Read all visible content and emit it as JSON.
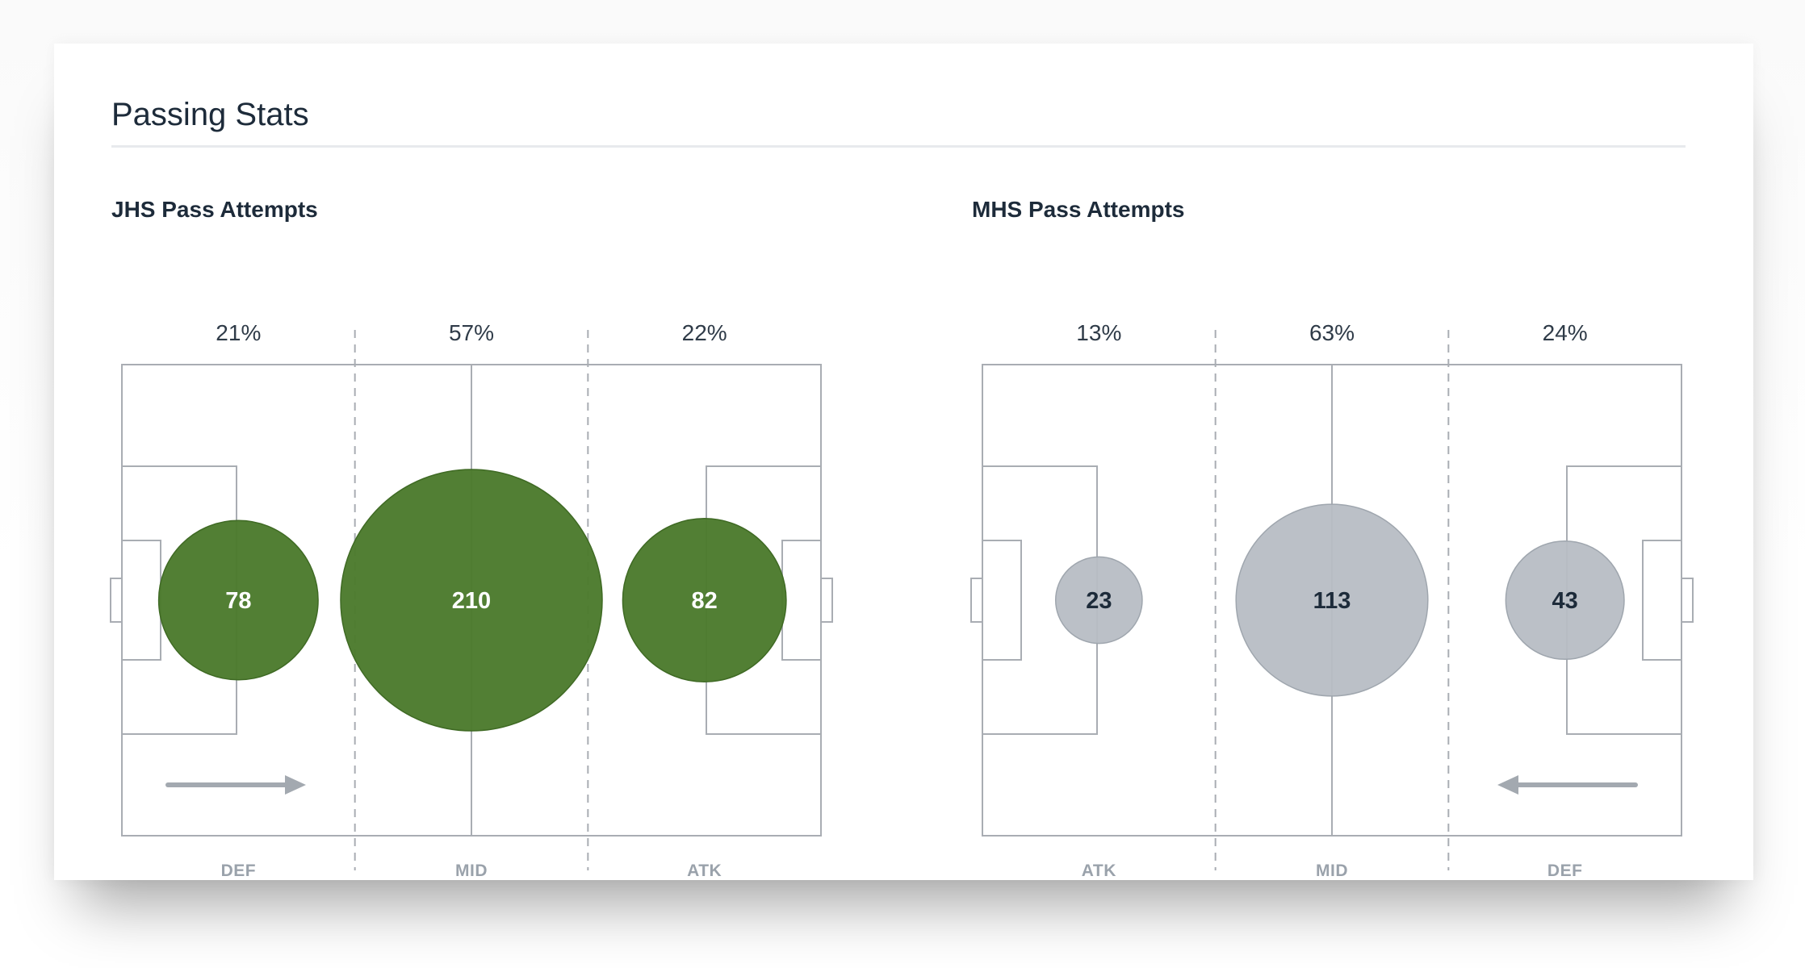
{
  "section_title": "Passing Stats",
  "colors": {
    "home_bubble": "#4b7a2c",
    "home_bubble_stroke": "#3f6a24",
    "home_text": "#ffffff",
    "away_bubble": "#b7bdc4",
    "away_bubble_stroke": "#9fa6ae",
    "away_text": "#1d2b3a",
    "pitch_line": "#a9adb3",
    "zone_divider": "#a9adb3",
    "arrow": "#a3a9b0"
  },
  "chart_data": [
    {
      "type": "bubble",
      "title": "JHS Pass Attempts",
      "team": "JHS",
      "direction": "right",
      "categories": [
        "DEF",
        "MID",
        "ATK"
      ],
      "values": [
        78,
        210,
        82
      ],
      "percentages": [
        "21%",
        "57%",
        "22%"
      ],
      "value_labels": [
        "78",
        "210",
        "82"
      ]
    },
    {
      "type": "bubble",
      "title": "MHS Pass Attempts",
      "team": "MHS",
      "direction": "left",
      "categories": [
        "ATK",
        "MID",
        "DEF"
      ],
      "values": [
        23,
        113,
        43
      ],
      "percentages": [
        "13%",
        "63%",
        "24%"
      ],
      "value_labels": [
        "23",
        "113",
        "43"
      ]
    }
  ]
}
